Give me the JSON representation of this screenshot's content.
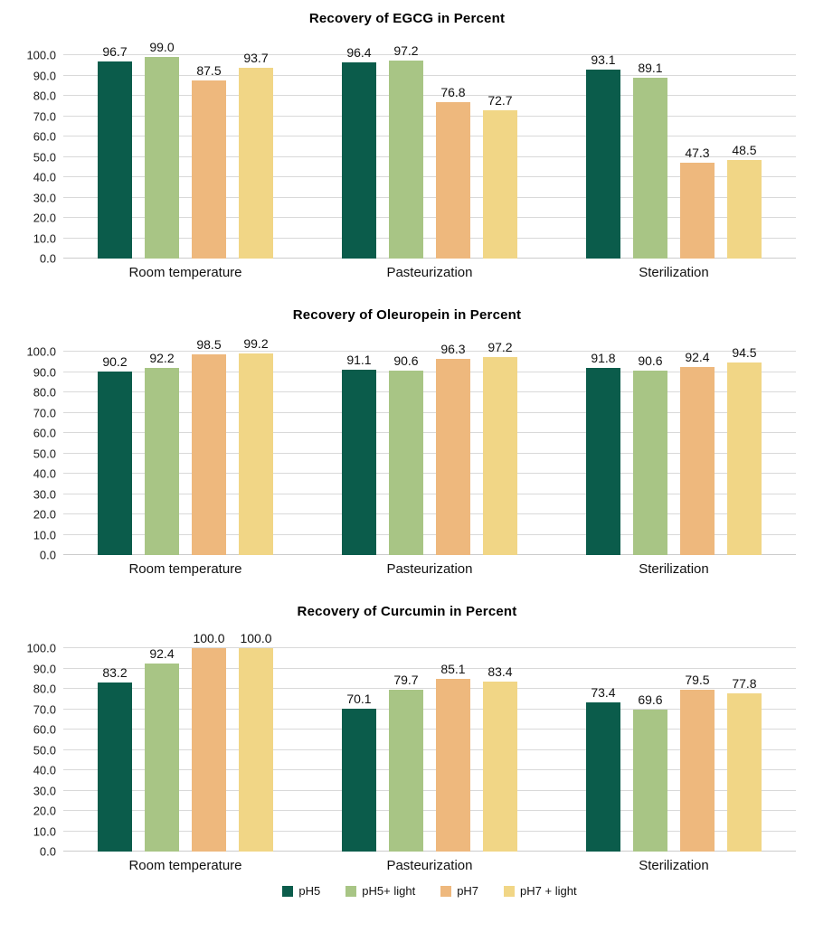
{
  "legend": {
    "position": "bottom",
    "items": [
      {
        "label": "pH5",
        "color": "#0b5c4b"
      },
      {
        "label": "pH5+ light",
        "color": "#a8c585"
      },
      {
        "label": "pH7",
        "color": "#eeb87d"
      },
      {
        "label": "pH7 + light",
        "color": "#f1d686"
      }
    ]
  },
  "chart_data": [
    {
      "type": "bar",
      "title": "Recovery of EGCG in Percent",
      "categories": [
        "Room temperature",
        "Pasteurization",
        "Sterilization"
      ],
      "series": [
        {
          "name": "pH5",
          "color": "#0b5c4b",
          "values": [
            96.7,
            96.4,
            93.1
          ]
        },
        {
          "name": "pH5+ light",
          "color": "#a8c585",
          "values": [
            99.0,
            97.2,
            89.1
          ]
        },
        {
          "name": "pH7",
          "color": "#eeb87d",
          "values": [
            87.5,
            76.8,
            47.3
          ]
        },
        {
          "name": "pH7 + light",
          "color": "#f1d686",
          "values": [
            93.7,
            72.7,
            48.5
          ]
        }
      ],
      "ylim": [
        0,
        100
      ],
      "ytick_step": 10,
      "ytick_labels": [
        "0.0",
        "10.0",
        "20.0",
        "30.0",
        "40.0",
        "50.0",
        "60.0",
        "70.0",
        "80.0",
        "90.0",
        "100.0"
      ],
      "grid": true,
      "value_label_decimals": 1,
      "show_legend": false
    },
    {
      "type": "bar",
      "title": "Recovery of Oleuropein in Percent",
      "categories": [
        "Room temperature",
        "Pasteurization",
        "Sterilization"
      ],
      "series": [
        {
          "name": "pH5",
          "color": "#0b5c4b",
          "values": [
            90.2,
            91.1,
            91.8
          ]
        },
        {
          "name": "pH5+ light",
          "color": "#a8c585",
          "values": [
            92.2,
            90.6,
            90.6
          ]
        },
        {
          "name": "pH7",
          "color": "#eeb87d",
          "values": [
            98.5,
            96.3,
            92.4
          ]
        },
        {
          "name": "pH7 + light",
          "color": "#f1d686",
          "values": [
            99.2,
            97.2,
            94.5
          ]
        }
      ],
      "ylim": [
        0,
        100
      ],
      "ytick_step": 10,
      "ytick_labels": [
        "0.0",
        "10.0",
        "20.0",
        "30.0",
        "40.0",
        "50.0",
        "60.0",
        "70.0",
        "80.0",
        "90.0",
        "100.0"
      ],
      "grid": true,
      "value_label_decimals": 1,
      "show_legend": false
    },
    {
      "type": "bar",
      "title": "Recovery of Curcumin in Percent",
      "categories": [
        "Room temperature",
        "Pasteurization",
        "Sterilization"
      ],
      "series": [
        {
          "name": "pH5",
          "color": "#0b5c4b",
          "values": [
            83.2,
            70.1,
            73.4
          ]
        },
        {
          "name": "pH5+ light",
          "color": "#a8c585",
          "values": [
            92.4,
            79.7,
            69.6
          ]
        },
        {
          "name": "pH7",
          "color": "#eeb87d",
          "values": [
            100.0,
            85.1,
            79.5
          ]
        },
        {
          "name": "pH7 + light",
          "color": "#f1d686",
          "values": [
            100.0,
            83.4,
            77.8
          ]
        }
      ],
      "ylim": [
        0,
        100
      ],
      "ytick_step": 10,
      "ytick_labels": [
        "0.0",
        "10.0",
        "20.0",
        "30.0",
        "40.0",
        "50.0",
        "60.0",
        "70.0",
        "80.0",
        "90.0",
        "100.0"
      ],
      "grid": true,
      "value_label_decimals": 1,
      "show_legend": true
    }
  ]
}
